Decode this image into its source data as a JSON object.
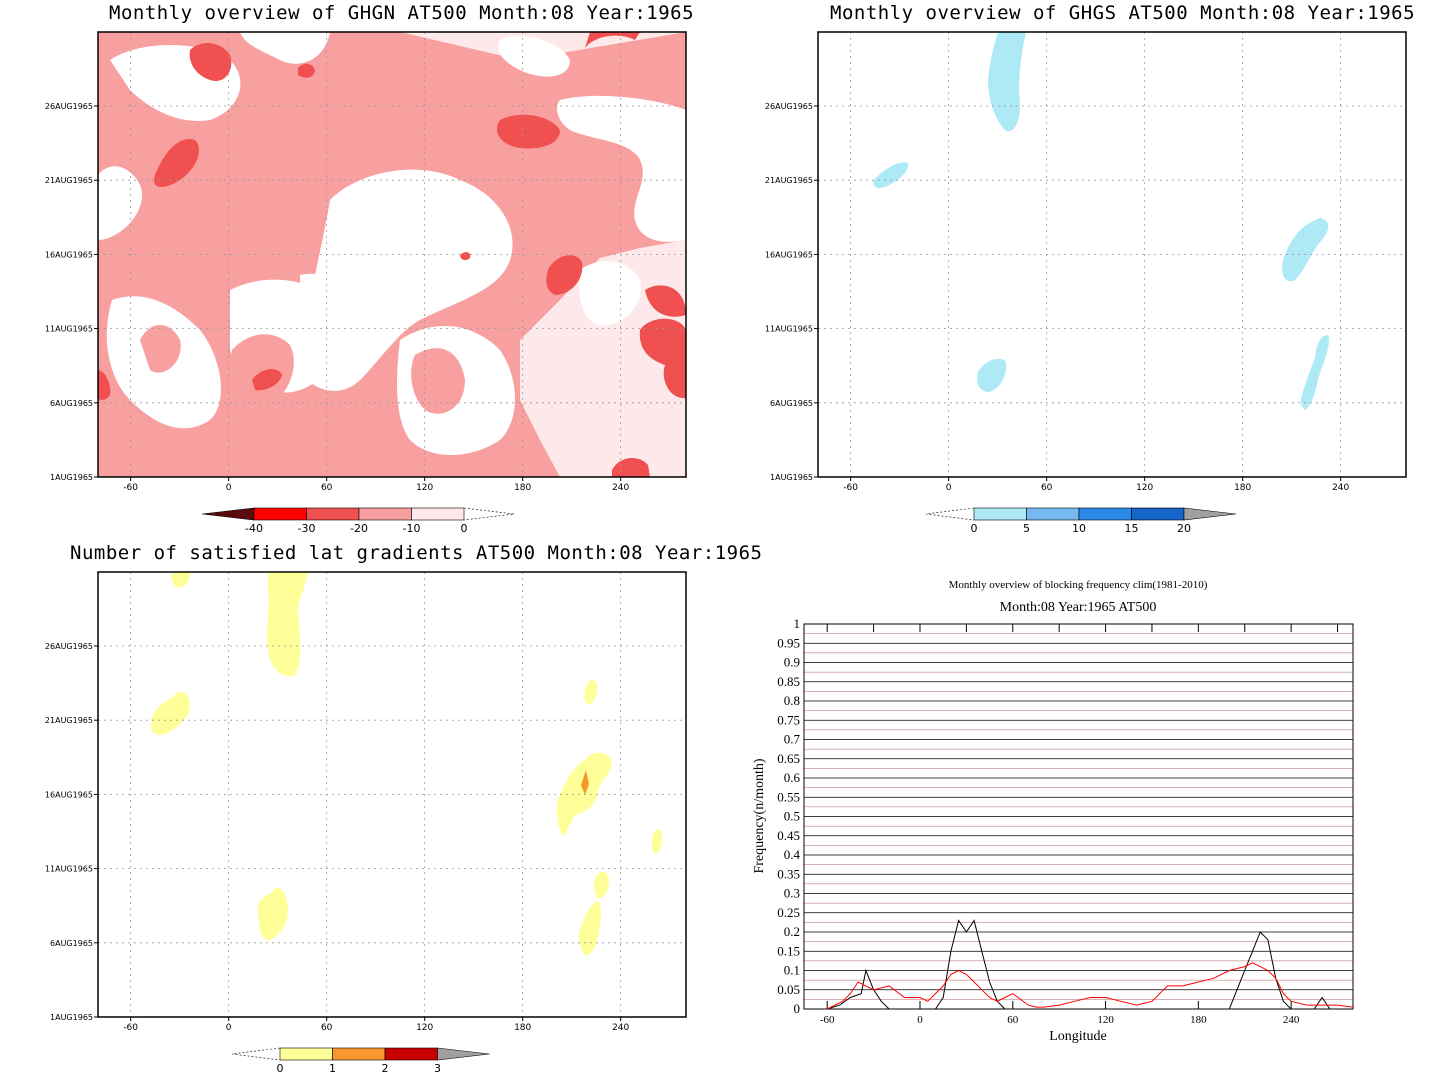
{
  "chart_data": [
    {
      "type": "heatmap",
      "title": "Monthly overview of GHGN AT500 Month:08 Year:1965",
      "x_ticks": [
        "-60",
        "0",
        "60",
        "120",
        "180",
        "240"
      ],
      "xlim": [
        -80,
        280
      ],
      "y_ticks": [
        "1AUG1965",
        "6AUG1965",
        "11AUG1965",
        "16AUG1965",
        "21AUG1965",
        "26AUG1965"
      ],
      "colorbar": {
        "labels": [
          "-40",
          "-30",
          "-20",
          "-10",
          "0"
        ],
        "colors": [
          "#5a0a0a",
          "#ff0000",
          "#f05050",
          "#f8a0a0",
          "#fde9e9"
        ]
      },
      "colors": {
        "background": "#fde9e9",
        "main": "#f8a0a0",
        "strong": "#f05050",
        "white": "#ffffff"
      }
    },
    {
      "type": "heatmap",
      "title": "Monthly overview of GHGS AT500 Month:08 Year:1965",
      "x_ticks": [
        "-60",
        "0",
        "60",
        "120",
        "180",
        "240"
      ],
      "xlim": [
        -80,
        280
      ],
      "y_ticks": [
        "1AUG1965",
        "6AUG1965",
        "11AUG1965",
        "16AUG1965",
        "21AUG1965",
        "26AUG1965"
      ],
      "colorbar": {
        "labels": [
          "0",
          "5",
          "10",
          "15",
          "20"
        ],
        "colors": [
          "#aeeaf5",
          "#78b8f0",
          "#2c8ae8",
          "#1565c8",
          "#a0a0a0"
        ]
      },
      "colors": {
        "blob": "#aeeaf5"
      }
    },
    {
      "type": "heatmap",
      "title": "Number of satisfied lat gradients AT500 Month:08 Year:1965",
      "x_ticks": [
        "-60",
        "0",
        "60",
        "120",
        "180",
        "240"
      ],
      "xlim": [
        -80,
        280
      ],
      "y_ticks": [
        "1AUG1965",
        "6AUG1965",
        "11AUG1965",
        "16AUG1965",
        "21AUG1965",
        "26AUG1965"
      ],
      "colorbar": {
        "labels": [
          "0",
          "1",
          "2",
          "3"
        ],
        "colors": [
          "#ffff99",
          "#f7972d",
          "#c80000",
          "#a0a0a0"
        ]
      },
      "colors": {
        "blob": "#ffff99",
        "orange": "#f7972d"
      }
    },
    {
      "type": "line",
      "title": "Monthly overview of blocking frequency clim(1981-2010)",
      "subtitle": "Month:08 Year:1965  AT500",
      "xlabel": "Longitude",
      "ylabel": "Frequency(n/month)",
      "xlim": [
        -75,
        280
      ],
      "ylim": [
        0,
        1
      ],
      "x_ticks": [
        "-60",
        "0",
        "60",
        "120",
        "180",
        "240"
      ],
      "y_ticks": [
        "0",
        "0.05",
        "0.1",
        "0.15",
        "0.2",
        "0.25",
        "0.3",
        "0.35",
        "0.4",
        "0.45",
        "0.5",
        "0.55",
        "0.6",
        "0.65",
        "0.7",
        "0.75",
        "0.8",
        "0.85",
        "0.9",
        "0.95",
        "1"
      ],
      "series": [
        {
          "color": "#000000",
          "x": [
            -75,
            -60,
            -52,
            -45,
            -38,
            -35,
            -30,
            -25,
            -20,
            0,
            10,
            15,
            20,
            25,
            30,
            35,
            40,
            45,
            50,
            55,
            200,
            205,
            210,
            215,
            220,
            225,
            230,
            235,
            240,
            255,
            260,
            265,
            280
          ],
          "y": [
            0,
            0,
            0.01,
            0.03,
            0.04,
            0.1,
            0.05,
            0.02,
            0,
            0,
            0,
            0.03,
            0.15,
            0.23,
            0.2,
            0.23,
            0.15,
            0.07,
            0.02,
            0,
            0,
            0.05,
            0.1,
            0.15,
            0.2,
            0.18,
            0.08,
            0.02,
            0,
            0,
            0.03,
            0,
            0
          ]
        },
        {
          "color": "#ff0000",
          "x": [
            -60,
            -50,
            -45,
            -40,
            -35,
            -30,
            -20,
            -10,
            0,
            5,
            10,
            15,
            20,
            25,
            30,
            35,
            40,
            45,
            50,
            55,
            60,
            70,
            75,
            80,
            90,
            100,
            110,
            120,
            130,
            140,
            150,
            160,
            170,
            180,
            190,
            200,
            210,
            215,
            220,
            225,
            230,
            235,
            240,
            250,
            260,
            270,
            280
          ],
          "y": [
            0,
            0.02,
            0.04,
            0.07,
            0.06,
            0.05,
            0.06,
            0.03,
            0.03,
            0.02,
            0.04,
            0.06,
            0.09,
            0.1,
            0.09,
            0.07,
            0.05,
            0.03,
            0.02,
            0.03,
            0.04,
            0.01,
            0.005,
            0.005,
            0.01,
            0.02,
            0.03,
            0.03,
            0.02,
            0.01,
            0.02,
            0.06,
            0.06,
            0.07,
            0.08,
            0.1,
            0.11,
            0.12,
            0.11,
            0.1,
            0.08,
            0.04,
            0.02,
            0.01,
            0.01,
            0.01,
            0.005
          ]
        }
      ]
    }
  ]
}
